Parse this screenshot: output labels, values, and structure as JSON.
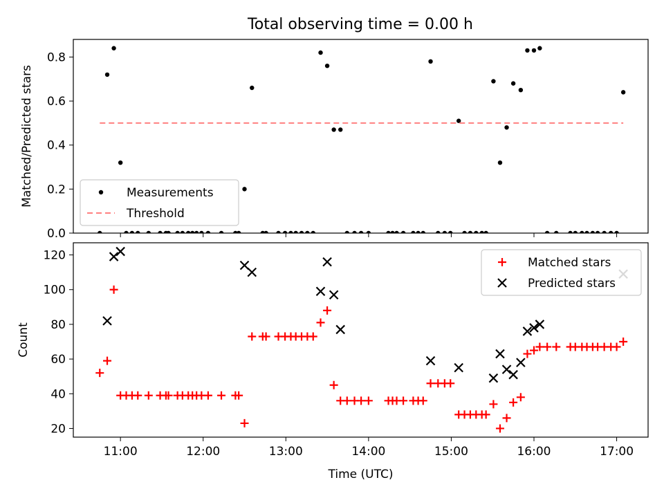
{
  "figure_title": "Total observing time = 0.00 h",
  "chart_data": [
    {
      "type": "scatter",
      "panel": "top",
      "title": "Total observing time = 0.00 h",
      "xlabel": "",
      "ylabel": "Matched/Predicted stars",
      "xlim": [
        10.43,
        17.38
      ],
      "ylim": [
        0.0,
        0.88
      ],
      "yticks": [
        0.0,
        0.2,
        0.4,
        0.6,
        0.8
      ],
      "ytick_labels": [
        "0.0",
        "0.2",
        "0.4",
        "0.6",
        "0.8"
      ],
      "legend_position": "lower-left",
      "series": [
        {
          "name": "Measurements",
          "marker": "dot",
          "color": "#000000",
          "x": [
            10.75,
            10.84,
            10.92,
            11.0,
            11.07,
            11.14,
            11.21,
            11.34,
            11.48,
            11.55,
            11.58,
            11.69,
            11.75,
            11.82,
            11.87,
            11.92,
            11.98,
            12.06,
            12.22,
            12.39,
            12.43,
            12.5,
            12.59,
            12.72,
            12.76,
            12.91,
            12.99,
            13.06,
            13.12,
            13.19,
            13.26,
            13.33,
            13.42,
            13.5,
            13.58,
            13.66,
            13.74,
            13.83,
            13.91,
            14.0,
            14.24,
            14.29,
            14.34,
            14.42,
            14.54,
            14.6,
            14.66,
            14.75,
            14.84,
            14.92,
            14.99,
            15.09,
            15.16,
            15.23,
            15.3,
            15.37,
            15.42,
            15.51,
            15.59,
            15.67,
            15.75,
            15.84,
            15.92,
            16.0,
            16.07,
            16.16,
            16.27,
            16.44,
            16.5,
            16.58,
            16.64,
            16.71,
            16.77,
            16.85,
            16.93,
            17.0,
            17.08
          ],
          "y": [
            0.0,
            0.72,
            0.84,
            0.32,
            0.0,
            0.0,
            0.0,
            0.0,
            0.0,
            0.0,
            0.0,
            0.0,
            0.0,
            0.0,
            0.0,
            0.0,
            0.0,
            0.0,
            0.0,
            0.0,
            0.0,
            0.2,
            0.66,
            0.0,
            0.0,
            0.0,
            0.0,
            0.0,
            0.0,
            0.0,
            0.0,
            0.0,
            0.82,
            0.76,
            0.47,
            0.47,
            0.0,
            0.0,
            0.0,
            0.0,
            0.0,
            0.0,
            0.0,
            0.0,
            0.0,
            0.0,
            0.0,
            0.78,
            0.0,
            0.0,
            0.0,
            0.51,
            0.0,
            0.0,
            0.0,
            0.0,
            0.0,
            0.69,
            0.32,
            0.48,
            0.68,
            0.65,
            0.83,
            0.83,
            0.84,
            0.0,
            0.0,
            0.0,
            0.0,
            0.0,
            0.0,
            0.0,
            0.0,
            0.0,
            0.0,
            0.0,
            0.64
          ]
        },
        {
          "name": "Threshold",
          "style": "dashed",
          "color": "#ff7f7f",
          "x": [
            10.75,
            17.08
          ],
          "y": [
            0.5,
            0.5
          ]
        }
      ]
    },
    {
      "type": "scatter",
      "panel": "bottom",
      "title": "",
      "xlabel": "Time (UTC)",
      "ylabel": "Count",
      "xlim": [
        10.43,
        17.38
      ],
      "ylim": [
        15,
        127
      ],
      "xticks": [
        11,
        12,
        13,
        14,
        15,
        16,
        17
      ],
      "xtick_labels": [
        "11:00",
        "12:00",
        "13:00",
        "14:00",
        "15:00",
        "16:00",
        "17:00"
      ],
      "yticks": [
        20,
        40,
        60,
        80,
        100,
        120
      ],
      "ytick_labels": [
        "20",
        "40",
        "60",
        "80",
        "100",
        "120"
      ],
      "legend_position": "upper-right",
      "series": [
        {
          "name": "Matched stars",
          "marker": "plus",
          "color": "#ff0000",
          "x": [
            10.75,
            10.84,
            10.92,
            11.0,
            11.07,
            11.14,
            11.21,
            11.34,
            11.48,
            11.55,
            11.58,
            11.69,
            11.75,
            11.82,
            11.87,
            11.92,
            11.98,
            12.06,
            12.22,
            12.39,
            12.43,
            12.5,
            12.59,
            12.72,
            12.76,
            12.91,
            12.99,
            13.06,
            13.12,
            13.19,
            13.26,
            13.33,
            13.42,
            13.5,
            13.58,
            13.66,
            13.74,
            13.83,
            13.91,
            14.0,
            14.24,
            14.29,
            14.34,
            14.42,
            14.54,
            14.6,
            14.66,
            14.75,
            14.84,
            14.92,
            14.99,
            15.09,
            15.16,
            15.23,
            15.3,
            15.37,
            15.42,
            15.51,
            15.59,
            15.67,
            15.75,
            15.84,
            15.92,
            16.0,
            16.07,
            16.16,
            16.27,
            16.44,
            16.5,
            16.58,
            16.64,
            16.71,
            16.77,
            16.85,
            16.93,
            17.0,
            17.08
          ],
          "y": [
            52,
            59,
            100,
            39,
            39,
            39,
            39,
            39,
            39,
            39,
            39,
            39,
            39,
            39,
            39,
            39,
            39,
            39,
            39,
            39,
            39,
            23,
            73,
            73,
            73,
            73,
            73,
            73,
            73,
            73,
            73,
            73,
            81,
            88,
            45,
            36,
            36,
            36,
            36,
            36,
            36,
            36,
            36,
            36,
            36,
            36,
            36,
            46,
            46,
            46,
            46,
            28,
            28,
            28,
            28,
            28,
            28,
            34,
            20,
            26,
            35,
            38,
            63,
            65,
            67,
            67,
            67,
            67,
            67,
            67,
            67,
            67,
            67,
            67,
            67,
            67,
            70
          ]
        },
        {
          "name": "Predicted stars",
          "marker": "x",
          "color": "#000000",
          "x": [
            10.84,
            10.92,
            11.0,
            12.5,
            12.59,
            13.42,
            13.5,
            13.58,
            13.66,
            14.75,
            15.09,
            15.51,
            15.59,
            15.67,
            15.75,
            15.84,
            15.92,
            16.0,
            16.07,
            17.08
          ],
          "y": [
            82,
            119,
            122,
            114,
            110,
            99,
            116,
            97,
            77,
            59,
            55,
            49,
            63,
            54,
            51,
            58,
            76,
            78,
            80,
            109
          ]
        }
      ]
    }
  ]
}
